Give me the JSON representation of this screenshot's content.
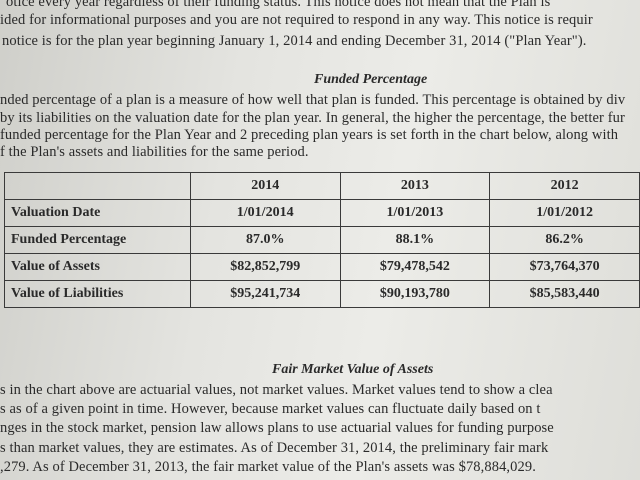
{
  "intro": {
    "line1": "otice every year regardless of their funding status. This notice does not mean that the Plan is",
    "line2": "ided for informational purposes and you are not required to respond in any way. This notice is requir",
    "line3": "notice is for the plan year beginning January 1, 2014 and ending December 31, 2014 (\"Plan Year\")."
  },
  "funded": {
    "heading": "Funded Percentage",
    "line1": "nded percentage of a plan is a measure of how well that plan is funded. This percentage is obtained by div",
    "line2": "by its liabilities on the valuation date for the plan year. In general, the higher the percentage, the better fur",
    "line3": "funded percentage for the Plan Year and 2 preceding plan years is set forth in the chart below, along with",
    "line4": "f the Plan's assets and liabilities for the same period."
  },
  "table": {
    "headers": [
      "",
      "2014",
      "2013",
      "2012"
    ],
    "rows": [
      [
        "Valuation Date",
        "1/01/2014",
        "1/01/2013",
        "1/01/2012"
      ],
      [
        "Funded Percentage",
        "87.0%",
        "88.1%",
        "86.2%"
      ],
      [
        "Value of Assets",
        "$82,852,799",
        "$79,478,542",
        "$73,764,370"
      ],
      [
        "Value of Liabilities",
        "$95,241,734",
        "$90,193,780",
        "$85,583,440"
      ]
    ]
  },
  "fair_market": {
    "heading": "Fair Market Value of Assets",
    "line1": "s in the chart above are actuarial values, not market values. Market values tend to show a clea",
    "line2": "s as of a given point in time. However, because market values can fluctuate daily based on t",
    "line3": "nges in the stock market, pension law allows plans to use actuarial values for funding purpose",
    "line4": "s than market values, they are estimates. As of December 31, 2014, the preliminary fair mark",
    "line5": ",279. As of December 31, 2013, the fair market value of the Plan's assets was $78,884,029."
  }
}
